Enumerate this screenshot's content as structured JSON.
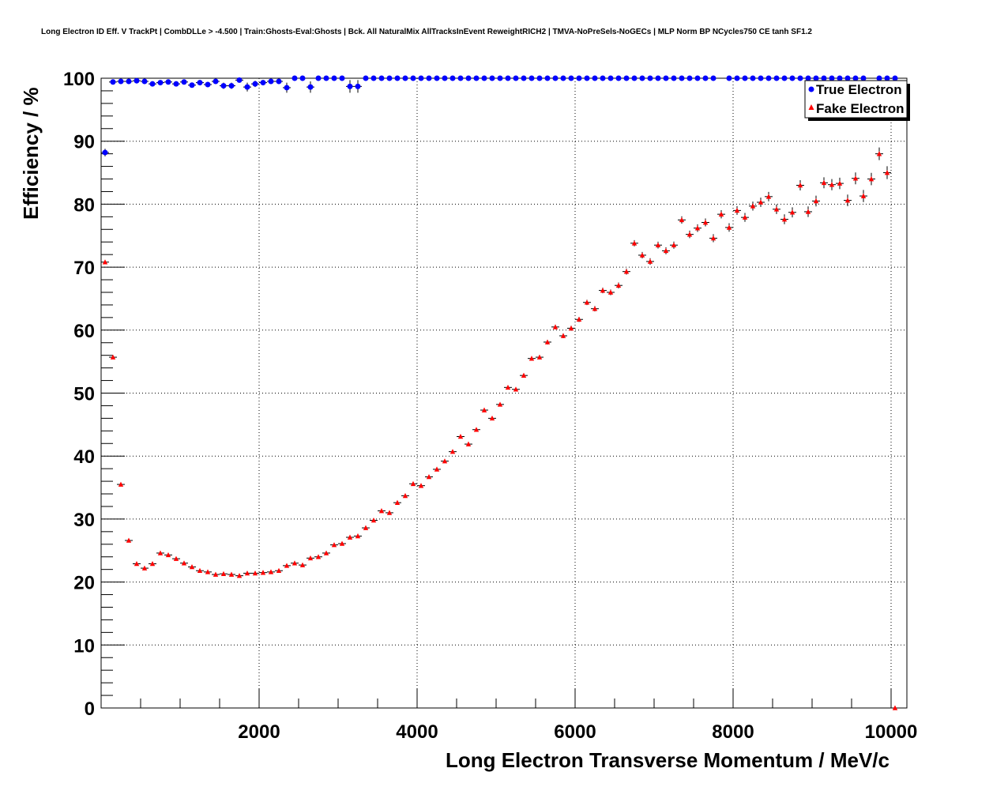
{
  "chart_data": {
    "type": "scatter",
    "title": "Long Electron ID Eff. V TrackPt | CombDLLe > -4.500 | Train:Ghosts-Eval:Ghosts | Bck. All NaturalMix AllTracksInEvent ReweightRICH2 | TMVA-NoPreSels-NoGECs | MLP Norm BP NCycles750 CE tanh SF1.2",
    "xlabel": "Long Electron Transverse Momentum / MeV/c",
    "ylabel": "Efficiency / %",
    "xlim": [
      0,
      10200
    ],
    "ylim": [
      0,
      100
    ],
    "x_ticks": [
      "2000",
      "4000",
      "6000",
      "8000",
      "10000"
    ],
    "y_ticks": [
      "0",
      "10",
      "20",
      "30",
      "40",
      "50",
      "60",
      "70",
      "80",
      "90",
      "100"
    ],
    "grid": true,
    "legend_position": "top-right",
    "x": [
      50,
      150,
      250,
      350,
      450,
      550,
      650,
      750,
      850,
      950,
      1050,
      1150,
      1250,
      1350,
      1450,
      1550,
      1650,
      1750,
      1850,
      1950,
      2050,
      2150,
      2250,
      2350,
      2450,
      2550,
      2650,
      2750,
      2850,
      2950,
      3050,
      3150,
      3250,
      3350,
      3450,
      3550,
      3650,
      3750,
      3850,
      3950,
      4050,
      4150,
      4250,
      4350,
      4450,
      4550,
      4650,
      4750,
      4850,
      4950,
      5050,
      5150,
      5250,
      5350,
      5450,
      5550,
      5650,
      5750,
      5850,
      5950,
      6050,
      6150,
      6250,
      6350,
      6450,
      6550,
      6650,
      6750,
      6850,
      6950,
      7050,
      7150,
      7250,
      7350,
      7450,
      7550,
      7650,
      7750,
      7850,
      7950,
      8050,
      8150,
      8250,
      8350,
      8450,
      8550,
      8650,
      8750,
      8850,
      8950,
      9050,
      9150,
      9250,
      9350,
      9450,
      9550,
      9650,
      9750,
      9850,
      9950,
      10050
    ],
    "series": [
      {
        "name": "True Electron",
        "color": "#0000ff",
        "marker": "circle",
        "y": [
          88.2,
          99.4,
          99.5,
          99.5,
          99.6,
          99.5,
          99.1,
          99.3,
          99.4,
          99.1,
          99.4,
          98.9,
          99.3,
          99.0,
          99.5,
          98.8,
          98.8,
          99.7,
          98.6,
          99.1,
          99.3,
          99.5,
          99.5,
          98.5,
          100,
          100,
          98.6,
          100,
          100,
          100,
          100,
          98.7,
          98.7,
          100,
          100,
          100,
          100,
          100,
          100,
          100,
          100,
          100,
          100,
          100,
          100,
          100,
          100,
          100,
          100,
          100,
          100,
          100,
          100,
          100,
          100,
          100,
          100,
          100,
          100,
          100,
          100,
          100,
          100,
          100,
          100,
          100,
          100,
          100,
          100,
          100,
          100,
          100,
          100,
          100,
          100,
          100,
          100,
          100,
          null,
          100,
          100,
          100,
          100,
          100,
          100,
          100,
          100,
          100,
          100,
          100,
          100,
          100,
          100,
          100,
          100,
          100,
          100,
          null,
          100,
          100,
          100
        ],
        "yerr": [
          0.6,
          0.4,
          0.3,
          0.3,
          0.3,
          0.3,
          0.4,
          0.3,
          0.3,
          0.4,
          0.3,
          0.4,
          0.4,
          0.4,
          0.3,
          0.5,
          0.5,
          0.3,
          0.7,
          0.5,
          0.4,
          0.4,
          0.4,
          0.8,
          0.3,
          0.3,
          0.9,
          0.3,
          0.3,
          0.3,
          0.3,
          1.0,
          1.0,
          0.3,
          0.3,
          0.3,
          0.3,
          0.3,
          0.3,
          0.3,
          0.3,
          0.3,
          0.3,
          0.3,
          0.3,
          0.3,
          0.3,
          0.3,
          0.3,
          0.3,
          0.3,
          0.3,
          0.3,
          0.3,
          0.3,
          0.3,
          0.3,
          0.3,
          0.3,
          0.3,
          0.3,
          0.3,
          0.3,
          0.3,
          0.3,
          0.3,
          0.3,
          0.3,
          0.3,
          0.3,
          0.3,
          0.3,
          0.3,
          0.3,
          0.3,
          0.3,
          0.3,
          0.3,
          0,
          0.3,
          0.3,
          0.3,
          0.3,
          0.3,
          0.3,
          0.3,
          0.3,
          0.3,
          0.3,
          0.3,
          0.3,
          0.3,
          0.3,
          0.3,
          0.3,
          0.3,
          0.3,
          0,
          0.3,
          0.3,
          0.3
        ]
      },
      {
        "name": "Fake Electron",
        "color": "#ff0000",
        "marker": "triangle",
        "y": [
          70.8,
          55.7,
          35.5,
          26.6,
          22.9,
          22.2,
          22.9,
          24.6,
          24.3,
          23.7,
          23.0,
          22.4,
          21.8,
          21.6,
          21.2,
          21.3,
          21.2,
          21.0,
          21.4,
          21.4,
          21.5,
          21.6,
          21.8,
          22.6,
          23.0,
          22.7,
          23.8,
          24.0,
          24.6,
          25.9,
          26.1,
          27.1,
          27.3,
          28.6,
          29.8,
          31.3,
          31.0,
          32.6,
          33.7,
          35.6,
          35.3,
          36.7,
          37.9,
          39.2,
          40.7,
          43.1,
          41.9,
          44.2,
          47.3,
          46.0,
          48.2,
          50.9,
          50.6,
          52.8,
          55.5,
          55.7,
          58.1,
          60.5,
          59.1,
          60.3,
          61.7,
          64.4,
          63.4,
          66.3,
          66.0,
          67.1,
          69.3,
          73.8,
          71.9,
          70.9,
          73.5,
          72.6,
          73.5,
          77.5,
          75.2,
          76.2,
          77.1,
          74.6,
          78.4,
          76.3,
          79.0,
          77.9,
          79.7,
          80.3,
          81.2,
          79.2,
          77.6,
          78.7,
          83.0,
          78.8,
          80.5,
          83.4,
          83.1,
          83.3,
          80.6,
          84.1,
          81.3,
          84.0,
          88.0,
          85.0,
          0
        ]
      }
    ]
  }
}
